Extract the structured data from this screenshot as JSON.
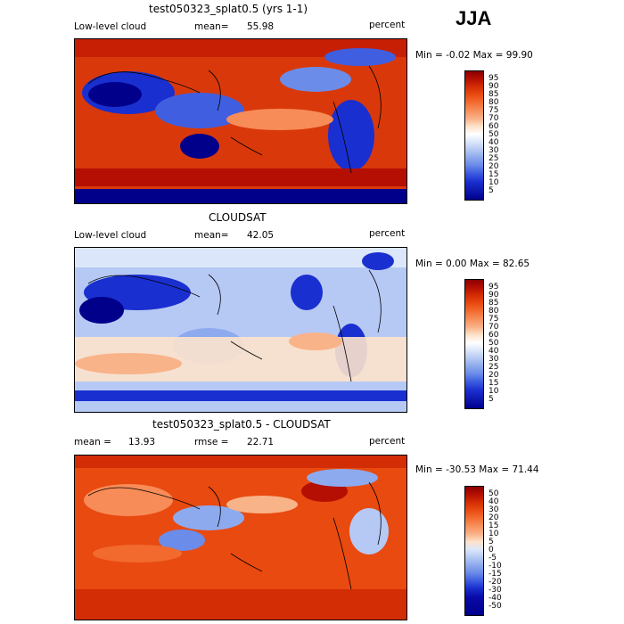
{
  "season": "JJA",
  "units_label": "percent",
  "panels": [
    {
      "title": "test050323_splat0.5 (yrs 1-1)",
      "left_label": "Low-level cloud",
      "stat_label": "mean=",
      "stat_value": "55.98",
      "units": "percent",
      "minmax": "Min =   -0.02 Max =  99.90",
      "colorbar_levels": [
        "95",
        "90",
        "85",
        "80",
        "75",
        "70",
        "60",
        "50",
        "40",
        "30",
        "25",
        "20",
        "15",
        "10",
        "5"
      ]
    },
    {
      "title": "CLOUDSAT",
      "left_label": "Low-level cloud",
      "stat_label": "mean=",
      "stat_value": "42.05",
      "units": "percent",
      "minmax": "Min =    0.00 Max =  82.65",
      "colorbar_levels": [
        "95",
        "90",
        "85",
        "80",
        "75",
        "70",
        "60",
        "50",
        "40",
        "30",
        "25",
        "20",
        "15",
        "10",
        "5"
      ]
    },
    {
      "title": "test050323_splat0.5 - CLOUDSAT",
      "left_label": "mean =",
      "left_value": "13.93",
      "stat_label": "rmse =",
      "stat_value": "22.71",
      "units": "percent",
      "minmax": "Min = -30.53 Max =  71.44",
      "colorbar_levels": [
        "50",
        "40",
        "30",
        "20",
        "15",
        "10",
        "5",
        "0",
        "-5",
        "-10",
        "-15",
        "-20",
        "-30",
        "-40",
        "-50"
      ]
    }
  ],
  "colors": {
    "abs_scale": [
      "#8b0000",
      "#b40f02",
      "#d32d05",
      "#e84a10",
      "#f26a2e",
      "#f78c58",
      "#f9b389",
      "#fde3cc",
      "#ffffff",
      "#dbe6fa",
      "#b6c9f4",
      "#8eaaee",
      "#6b8ce8",
      "#3f5fe0",
      "#1a2fcf",
      "#00008b"
    ],
    "diff_scale": [
      "#8b0000",
      "#b40f02",
      "#d32d05",
      "#e84a10",
      "#f26a2e",
      "#f78c58",
      "#f9b389",
      "#fde3cc",
      "#dbe6fa",
      "#b6c9f4",
      "#8eaaee",
      "#6b8ce8",
      "#3f5fe0",
      "#1a2fcf",
      "#0a0aa8",
      "#00008b"
    ]
  }
}
